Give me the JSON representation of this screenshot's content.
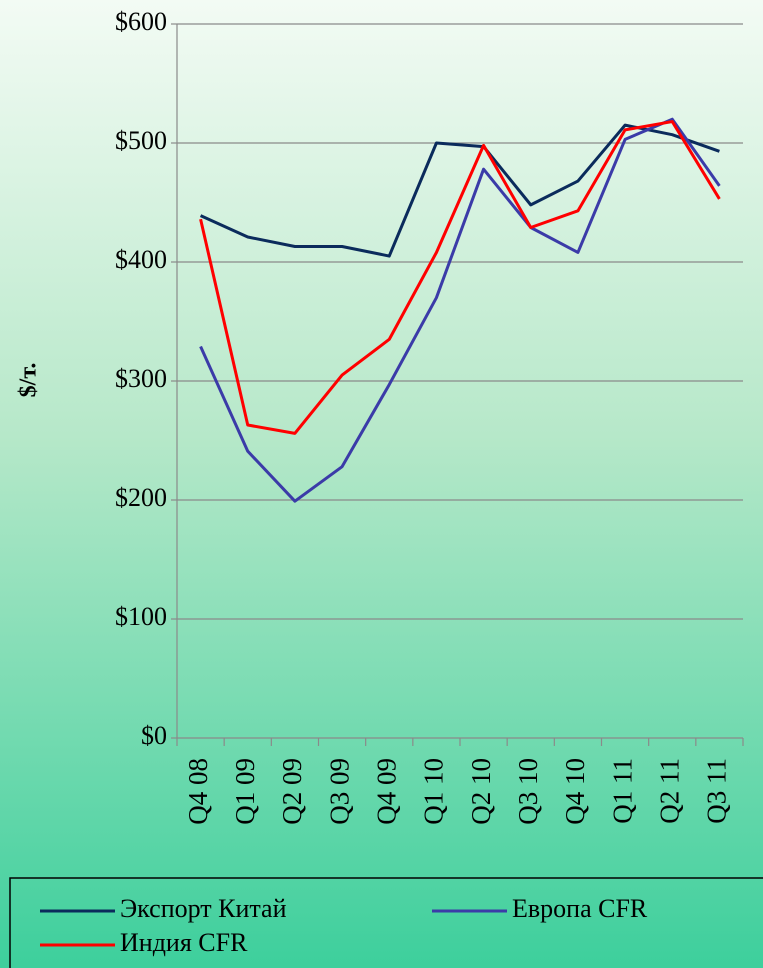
{
  "chart_data": {
    "type": "line",
    "y_label": "$/т.",
    "categories": [
      "Q4 08",
      "Q1 09",
      "Q2 09",
      "Q3 09",
      "Q4 09",
      "Q1 10",
      "Q2 10",
      "Q3 10",
      "Q4 10",
      "Q1 11",
      "Q2 11",
      "Q3 11"
    ],
    "series": [
      {
        "name": "Экспорт Китай",
        "color": "#0b2b5c",
        "values": [
          439,
          421,
          413,
          413,
          405,
          500,
          497,
          448,
          468,
          515,
          507,
          493
        ]
      },
      {
        "name": "Европа CFR",
        "color": "#3b3ba8",
        "values": [
          329,
          241,
          199,
          228,
          297,
          370,
          478,
          429,
          408,
          503,
          520,
          464
        ]
      },
      {
        "name": "Индия CFR",
        "color": "#ff0000",
        "values": [
          436,
          263,
          256,
          305,
          335,
          408,
          498,
          429,
          443,
          511,
          518,
          453
        ]
      }
    ],
    "ylim": [
      0,
      600
    ],
    "yticks": [
      {
        "value": 0,
        "label": "$0"
      },
      {
        "value": 100,
        "label": "$100"
      },
      {
        "value": 200,
        "label": "$200"
      },
      {
        "value": 300,
        "label": "$300"
      },
      {
        "value": 400,
        "label": "$400"
      },
      {
        "value": 500,
        "label": "$500"
      },
      {
        "value": 600,
        "label": "$600"
      }
    ],
    "grid": true,
    "legend": "bottom"
  }
}
